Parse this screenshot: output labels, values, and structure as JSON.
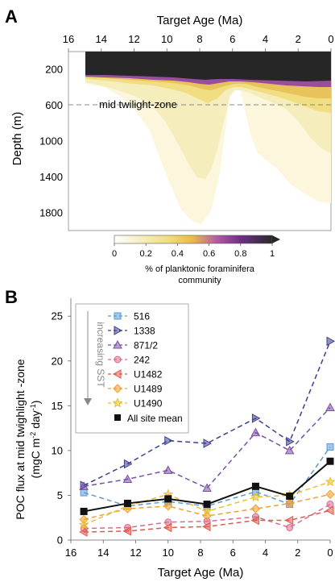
{
  "panel_a": {
    "label": "A",
    "title": "Target Age (Ma)",
    "ylabel": "Depth (m)",
    "x_ticks": [
      "16",
      "14",
      "12",
      "10",
      "8",
      "6",
      "4",
      "2",
      "0"
    ],
    "y_ticks": [
      "200",
      "600",
      "1000",
      "1400",
      "1800"
    ],
    "annotation": "mid twilight-zone",
    "colorbar": {
      "ticks": [
        "0",
        "0.2",
        "0.4",
        "0.6",
        "0.8",
        "1"
      ],
      "label_line1": "% of planktonic foraminifera",
      "label_line2": "community",
      "colors": [
        "#ffffff",
        "#f7f0c6",
        "#f0dc7a",
        "#e9b84a",
        "#b45aa5",
        "#6e2f85",
        "#2a2a2a"
      ]
    }
  },
  "panel_b": {
    "label": "B",
    "xlabel": "Target Age (Ma)",
    "ylabel_line1": "POC flux at mid twighlight -zone",
    "ylabel_line2": "(mgC m",
    "ylabel_sup1": "-2",
    "ylabel_mid": " day",
    "ylabel_sup2": "-1",
    "ylabel_end": ")",
    "gradient_label": "increasing SST",
    "mean_label": "All site mean",
    "x_ticks": [
      "16",
      "14",
      "12",
      "10",
      "8",
      "6",
      "4",
      "2",
      "0"
    ],
    "y_ticks": [
      "0",
      "5",
      "10",
      "15",
      "20",
      "25"
    ]
  },
  "chart_data": [
    {
      "type": "heatmap",
      "title": "Target Age (Ma)",
      "xlabel": "Target Age (Ma)",
      "ylabel": "Depth (m)",
      "xlim": [
        16,
        0
      ],
      "ylim": [
        2000,
        0
      ],
      "colorbar_label": "% of planktonic foraminifera community",
      "colorbar_range": [
        0,
        1
      ],
      "reference_depth": 600,
      "reference_label": "mid twilight-zone"
    },
    {
      "type": "line",
      "xlabel": "Target Age (Ma)",
      "ylabel": "POC flux at mid twighlight -zone (mgC m-2 day-1)",
      "xlim": [
        16,
        0
      ],
      "ylim": [
        0,
        27
      ],
      "x": [
        15.2,
        12.5,
        10,
        7.6,
        4.6,
        2.5,
        0
      ],
      "series": [
        {
          "name": "516",
          "color": "#5b9bd5",
          "marker": "square",
          "values": [
            5.3,
            3.8,
            4.3,
            3.8,
            5.4,
            4.0,
            10.4
          ]
        },
        {
          "name": "1338",
          "color": "#3c3f8f",
          "marker": "triangle-right",
          "values": [
            6.1,
            8.5,
            11.1,
            10.8,
            13.6,
            11.0,
            22.2
          ]
        },
        {
          "name": "871/2",
          "color": "#7a4fa6",
          "marker": "triangle-up",
          "values": [
            6.0,
            6.8,
            7.8,
            5.8,
            12.0,
            10.0,
            14.8
          ]
        },
        {
          "name": "242",
          "color": "#d86b8f",
          "marker": "circle",
          "values": [
            1.3,
            1.4,
            2.0,
            2.1,
            2.6,
            1.4,
            4.0
          ]
        },
        {
          "name": "U1482",
          "color": "#e05a4a",
          "marker": "triangle-left",
          "values": [
            0.9,
            1.0,
            1.4,
            1.5,
            2.2,
            2.2,
            3.3
          ]
        },
        {
          "name": "U1489",
          "color": "#f0a030",
          "marker": "diamond",
          "values": [
            2.3,
            3.5,
            3.8,
            2.7,
            3.5,
            4.1,
            5.1
          ]
        },
        {
          "name": "U1490",
          "color": "#e8c030",
          "marker": "star",
          "values": [
            1.7,
            3.8,
            5.1,
            3.2,
            4.8,
            5.0,
            6.5
          ]
        },
        {
          "name": "All site mean",
          "color": "#111111",
          "marker": "filled-square",
          "values": [
            3.2,
            4.1,
            4.6,
            4.0,
            6.0,
            4.9,
            8.8
          ]
        }
      ],
      "legend": "top-left"
    }
  ]
}
